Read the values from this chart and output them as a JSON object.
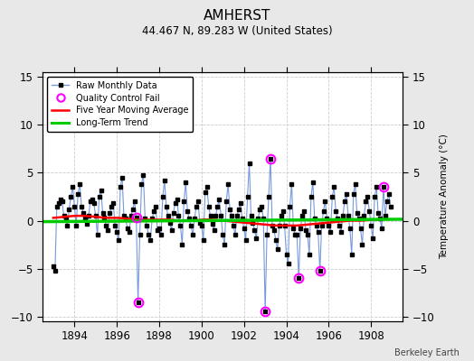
{
  "title": "AMHERST",
  "subtitle": "44.467 N, 89.283 W (United States)",
  "ylabel": "Temperature Anomaly (°C)",
  "credit": "Berkeley Earth",
  "xlim": [
    1892.5,
    1909.5
  ],
  "ylim": [
    -10.5,
    15.5
  ],
  "yticks": [
    -10,
    -5,
    0,
    5,
    10,
    15
  ],
  "xticks": [
    1894,
    1896,
    1898,
    1900,
    1902,
    1904,
    1906,
    1908
  ],
  "bg_color": "#e8e8e8",
  "plot_bg_color": "#ffffff",
  "raw_line_color": "#7799dd",
  "raw_marker_color": "#000000",
  "ma_color": "#ff0000",
  "trend_color": "#00cc00",
  "qc_color": "magenta",
  "raw_data": [
    1893.0,
    -4.8,
    1893.083,
    -5.2,
    1893.167,
    1.5,
    1893.25,
    1.8,
    1893.333,
    2.2,
    1893.417,
    2.0,
    1893.5,
    0.5,
    1893.583,
    0.2,
    1893.667,
    -0.5,
    1893.75,
    1.2,
    1893.833,
    2.5,
    1893.917,
    3.5,
    1894.0,
    1.5,
    1894.083,
    -0.5,
    1894.167,
    2.8,
    1894.25,
    3.8,
    1894.333,
    1.5,
    1894.417,
    0.8,
    1894.5,
    0.2,
    1894.583,
    -0.3,
    1894.667,
    0.5,
    1894.75,
    2.0,
    1894.833,
    2.2,
    1894.917,
    1.8,
    1895.0,
    0.5,
    1895.083,
    -1.5,
    1895.167,
    2.5,
    1895.25,
    3.2,
    1895.333,
    0.8,
    1895.417,
    0.3,
    1895.5,
    -0.5,
    1895.583,
    -1.0,
    1895.667,
    0.8,
    1895.75,
    1.5,
    1895.833,
    1.8,
    1895.917,
    -0.5,
    1896.0,
    -1.2,
    1896.083,
    -2.0,
    1896.167,
    3.5,
    1896.25,
    4.5,
    1896.333,
    0.5,
    1896.417,
    0.2,
    1896.5,
    -0.8,
    1896.583,
    -1.2,
    1896.667,
    0.5,
    1896.75,
    1.2,
    1896.833,
    2.0,
    1896.917,
    0.3,
    1897.0,
    -8.5,
    1897.083,
    -1.5,
    1897.167,
    3.8,
    1897.25,
    4.8,
    1897.333,
    0.2,
    1897.417,
    -0.5,
    1897.5,
    -1.5,
    1897.583,
    -2.0,
    1897.667,
    0.2,
    1897.75,
    1.0,
    1897.833,
    1.5,
    1897.917,
    -1.0,
    1898.0,
    -0.8,
    1898.083,
    -1.5,
    1898.167,
    2.5,
    1898.25,
    4.2,
    1898.333,
    1.5,
    1898.417,
    0.5,
    1898.5,
    -0.2,
    1898.583,
    -1.0,
    1898.667,
    0.8,
    1898.75,
    1.8,
    1898.833,
    2.2,
    1898.917,
    0.5,
    1899.0,
    -0.5,
    1899.083,
    -2.5,
    1899.167,
    2.0,
    1899.25,
    4.0,
    1899.333,
    1.0,
    1899.417,
    0.2,
    1899.5,
    -0.5,
    1899.583,
    -1.5,
    1899.667,
    0.2,
    1899.75,
    1.5,
    1899.833,
    2.0,
    1899.917,
    -0.2,
    1900.0,
    -0.5,
    1900.083,
    -2.0,
    1900.167,
    3.0,
    1900.25,
    3.5,
    1900.333,
    1.5,
    1900.417,
    0.5,
    1900.5,
    -0.3,
    1900.583,
    -1.0,
    1900.667,
    0.5,
    1900.75,
    1.5,
    1900.833,
    2.2,
    1900.917,
    0.5,
    1901.0,
    -1.5,
    1901.083,
    -2.5,
    1901.167,
    2.0,
    1901.25,
    3.8,
    1901.333,
    1.2,
    1901.417,
    0.5,
    1901.5,
    -0.5,
    1901.583,
    -1.5,
    1901.667,
    0.5,
    1901.75,
    1.2,
    1901.833,
    1.8,
    1901.917,
    0.2,
    1902.0,
    -0.8,
    1902.083,
    -2.0,
    1902.167,
    2.5,
    1902.25,
    6.0,
    1902.333,
    0.5,
    1902.417,
    -0.2,
    1902.5,
    -1.0,
    1902.583,
    -1.8,
    1902.667,
    0.2,
    1902.75,
    1.2,
    1902.833,
    1.5,
    1902.917,
    0.2,
    1903.0,
    -9.5,
    1903.083,
    -1.5,
    1903.167,
    2.5,
    1903.25,
    6.5,
    1903.333,
    -0.5,
    1903.417,
    -1.0,
    1903.5,
    -2.0,
    1903.583,
    -3.0,
    1903.667,
    -0.5,
    1903.75,
    0.5,
    1903.833,
    1.0,
    1903.917,
    -0.5,
    1904.0,
    -3.5,
    1904.083,
    -4.5,
    1904.167,
    1.5,
    1904.25,
    3.8,
    1904.333,
    -0.8,
    1904.417,
    -1.5,
    1904.5,
    -1.5,
    1904.583,
    -6.0,
    1904.667,
    -0.8,
    1904.75,
    0.5,
    1904.833,
    1.0,
    1904.917,
    -1.0,
    1905.0,
    -1.5,
    1905.083,
    -3.5,
    1905.167,
    2.5,
    1905.25,
    4.0,
    1905.333,
    0.2,
    1905.417,
    -0.5,
    1905.5,
    -1.2,
    1905.583,
    -5.2,
    1905.667,
    -0.5,
    1905.75,
    1.0,
    1905.833,
    2.0,
    1905.917,
    0.2,
    1906.0,
    -0.5,
    1906.083,
    -1.2,
    1906.167,
    2.5,
    1906.25,
    3.5,
    1906.333,
    1.0,
    1906.417,
    0.2,
    1906.5,
    -0.5,
    1906.583,
    -1.2,
    1906.667,
    0.5,
    1906.75,
    2.0,
    1906.833,
    2.8,
    1906.917,
    0.5,
    1907.0,
    -0.8,
    1907.083,
    -3.5,
    1907.167,
    2.8,
    1907.25,
    3.8,
    1907.333,
    0.8,
    1907.417,
    0.2,
    1907.5,
    -0.8,
    1907.583,
    -2.5,
    1907.667,
    0.5,
    1907.75,
    2.0,
    1907.833,
    2.5,
    1907.917,
    1.0,
    1908.0,
    -0.5,
    1908.083,
    -1.8,
    1908.167,
    2.5,
    1908.25,
    3.5,
    1908.333,
    0.8,
    1908.417,
    0.2,
    1908.5,
    -0.8,
    1908.583,
    3.5,
    1908.667,
    0.5,
    1908.75,
    2.0,
    1908.833,
    2.8,
    1908.917,
    1.5
  ],
  "qc_points": [
    [
      1896.917,
      0.3
    ],
    [
      1897.0,
      -8.5
    ],
    [
      1903.0,
      -9.5
    ],
    [
      1903.25,
      6.5
    ],
    [
      1904.583,
      -6.0
    ],
    [
      1905.583,
      -5.2
    ],
    [
      1908.583,
      3.5
    ]
  ],
  "ma_x": [
    1893.0,
    1893.5,
    1894.0,
    1894.5,
    1895.0,
    1895.5,
    1896.0,
    1896.5,
    1897.0,
    1897.5,
    1898.0,
    1898.5,
    1899.0,
    1899.5,
    1900.0,
    1900.5,
    1901.0,
    1901.5,
    1902.0,
    1902.5,
    1903.0,
    1903.5,
    1904.0,
    1904.5,
    1905.0,
    1905.5,
    1906.0,
    1906.5,
    1907.0,
    1907.5,
    1908.0,
    1908.5
  ],
  "ma_y": [
    0.3,
    0.4,
    0.5,
    0.5,
    0.4,
    0.3,
    0.3,
    0.2,
    0.1,
    0.1,
    0.1,
    0.1,
    0.0,
    0.0,
    0.1,
    0.1,
    0.0,
    -0.1,
    -0.2,
    -0.3,
    -0.4,
    -0.5,
    -0.5,
    -0.5,
    -0.4,
    -0.3,
    -0.2,
    -0.1,
    0.0,
    0.0,
    0.1,
    0.1
  ],
  "trend_x": [
    1892.5,
    1909.5
  ],
  "trend_y": [
    -0.1,
    0.15
  ]
}
